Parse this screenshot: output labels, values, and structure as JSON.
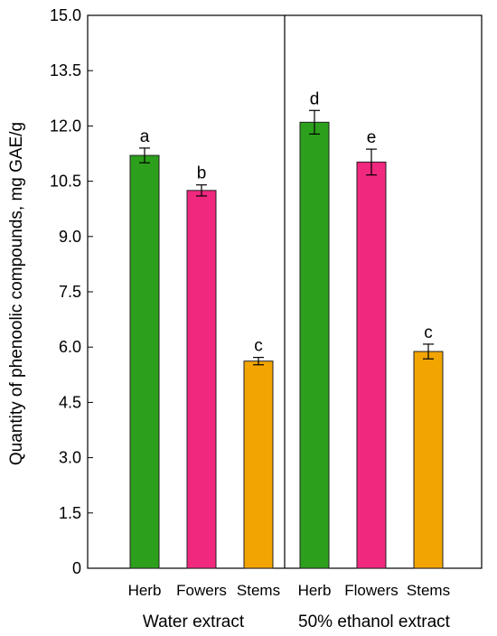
{
  "chart_data": {
    "type": "bar",
    "ylabel": "Quantity of phenoolic compounds, mg GAE/g",
    "ylim": [
      0,
      15
    ],
    "yticks": [
      "0",
      "1.5",
      "3.0",
      "4.5",
      "6.0",
      "7.5",
      "9.0",
      "10.5",
      "12.0",
      "13.5",
      "15.0"
    ],
    "groups": [
      {
        "label": "Water extract",
        "categories": [
          "Herb",
          "Fowers",
          "Stems"
        ],
        "values": [
          11.2,
          10.25,
          5.62
        ],
        "errors": [
          0.2,
          0.15,
          0.1
        ],
        "letters": [
          "a",
          "b",
          "c"
        ]
      },
      {
        "label": "50% ethanol extract",
        "categories": [
          "Herb",
          "Flowers",
          "Stems"
        ],
        "values": [
          12.1,
          11.02,
          5.88
        ],
        "errors": [
          0.32,
          0.35,
          0.2
        ],
        "letters": [
          "d",
          "e",
          "c"
        ]
      }
    ],
    "colors": [
      "#2ca01c",
      "#f0287e",
      "#f2a500"
    ],
    "grid": false,
    "legend": "none"
  }
}
